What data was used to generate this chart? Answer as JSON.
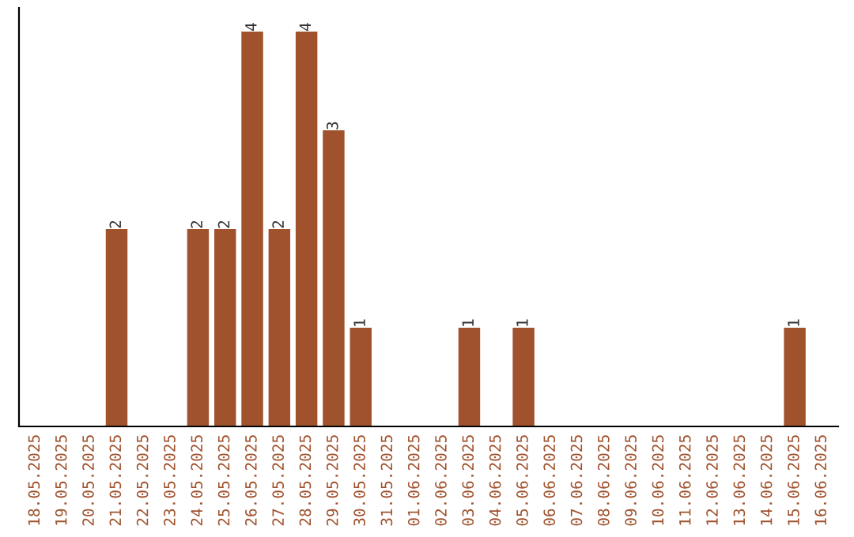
{
  "chart_data": {
    "type": "bar",
    "categories": [
      "18.05.2025",
      "19.05.2025",
      "20.05.2025",
      "21.05.2025",
      "22.05.2025",
      "23.05.2025",
      "24.05.2025",
      "25.05.2025",
      "26.05.2025",
      "27.05.2025",
      "28.05.2025",
      "29.05.2025",
      "30.05.2025",
      "31.05.2025",
      "01.06.2025",
      "02.06.2025",
      "03.06.2025",
      "04.06.2025",
      "05.06.2025",
      "06.06.2025",
      "07.06.2025",
      "08.06.2025",
      "09.06.2025",
      "10.06.2025",
      "11.06.2025",
      "12.06.2025",
      "13.06.2025",
      "14.06.2025",
      "15.06.2025",
      "16.06.2025"
    ],
    "values": [
      0,
      0,
      0,
      2,
      0,
      0,
      2,
      2,
      4,
      2,
      4,
      3,
      1,
      0,
      0,
      0,
      1,
      0,
      1,
      0,
      0,
      0,
      0,
      0,
      0,
      0,
      0,
      0,
      1,
      0
    ],
    "value_labels": [
      null,
      null,
      null,
      "2",
      null,
      null,
      "2",
      "2",
      "4",
      "2",
      "4",
      "3",
      "1",
      null,
      null,
      null,
      "1",
      null,
      "1",
      null,
      null,
      null,
      null,
      null,
      null,
      null,
      null,
      null,
      "1",
      null
    ],
    "color": "#a0522d",
    "ylim": [
      0,
      4.24
    ],
    "tick_labels": "x",
    "grid": false,
    "legend": false
  }
}
